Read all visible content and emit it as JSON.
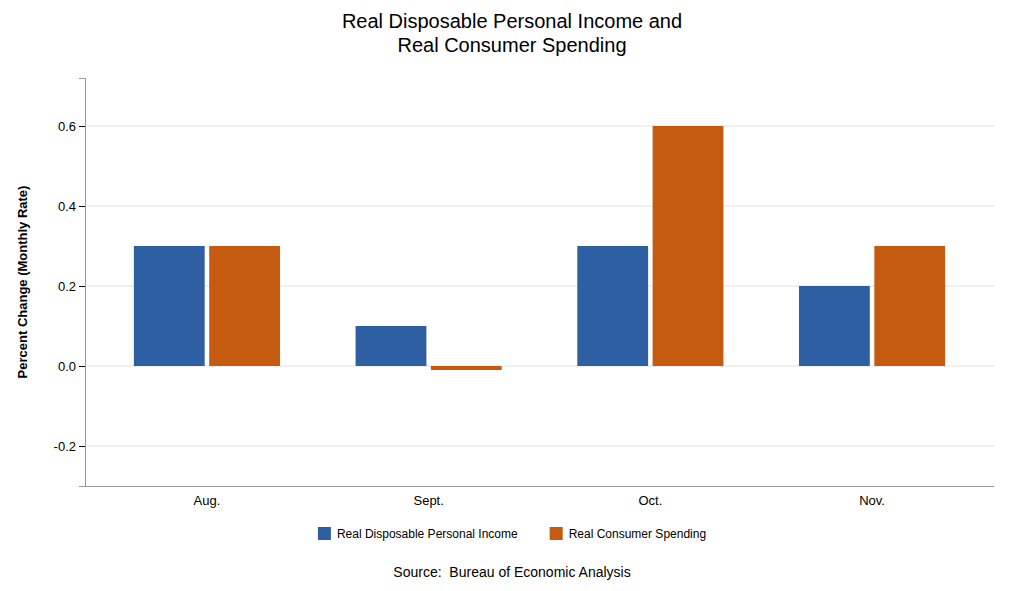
{
  "chart_data": {
    "type": "bar",
    "title": "Real Disposable Personal Income and\nReal Consumer Spending",
    "categories": [
      "Aug.",
      "Sept.",
      "Oct.",
      "Nov."
    ],
    "series": [
      {
        "name": "Real Disposable Personal Income",
        "color": "#2E5FA3",
        "values": [
          0.3,
          0.1,
          0.3,
          0.2
        ]
      },
      {
        "name": "Real Consumer Spending",
        "color": "#C55A11",
        "values": [
          0.3,
          -0.01,
          0.6,
          0.3
        ]
      }
    ],
    "ylabel": "Percent Change (Monthly Rate)",
    "ylim": [
      -0.3,
      0.72
    ],
    "yticks": [
      -0.2,
      {
        "value": 0,
        "label": "0.0"
      },
      0.2,
      0.4,
      0.6
    ],
    "grid": true,
    "legend": "bottom",
    "annotations": [
      "Source:  Bureau of Economic Analysis"
    ]
  }
}
